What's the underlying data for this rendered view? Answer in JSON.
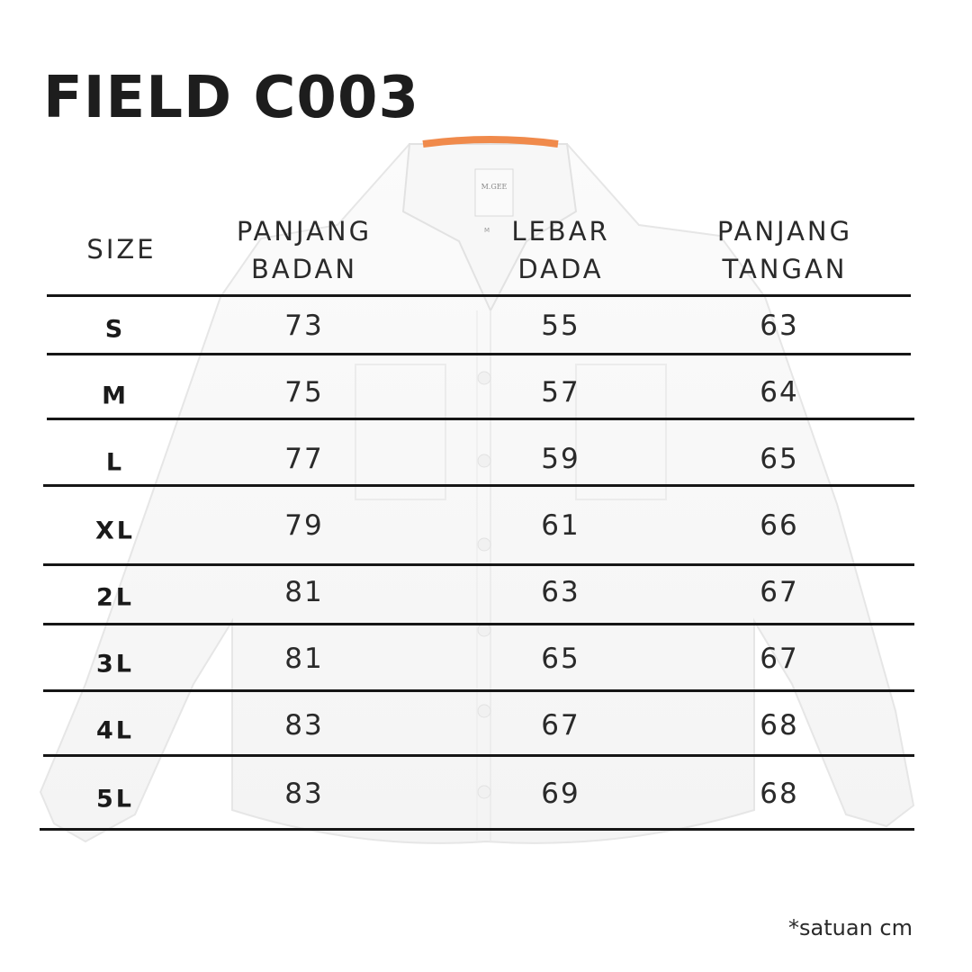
{
  "title": "FIELD C003",
  "brand_label": "M.GEE",
  "tag_size": "M",
  "columns": [
    "SIZE",
    "PANJANG BADAN",
    "LEBAR DADA",
    "PANJANG TANGAN"
  ],
  "rows": [
    {
      "size": "S",
      "panjang_badan": "73",
      "lebar_dada": "55",
      "panjang_tangan": "63"
    },
    {
      "size": "M",
      "panjang_badan": "75",
      "lebar_dada": "57",
      "panjang_tangan": "64"
    },
    {
      "size": "L",
      "panjang_badan": "77",
      "lebar_dada": "59",
      "panjang_tangan": "65"
    },
    {
      "size": "XL",
      "panjang_badan": "79",
      "lebar_dada": "61",
      "panjang_tangan": "66"
    },
    {
      "size": "2L",
      "panjang_badan": "81",
      "lebar_dada": "63",
      "panjang_tangan": "67"
    },
    {
      "size": "3L",
      "panjang_badan": "81",
      "lebar_dada": "65",
      "panjang_tangan": "67"
    },
    {
      "size": "4L",
      "panjang_badan": "83",
      "lebar_dada": "67",
      "panjang_tangan": "68"
    },
    {
      "size": "5L",
      "panjang_badan": "83",
      "lebar_dada": "69",
      "panjang_tangan": "68"
    }
  ],
  "footnote": "*satuan cm",
  "colors": {
    "text": "#1f1f1f",
    "rule": "#161616",
    "collar_tape": "#f08a4b",
    "shirt_shadow": "#e6e6e6"
  }
}
